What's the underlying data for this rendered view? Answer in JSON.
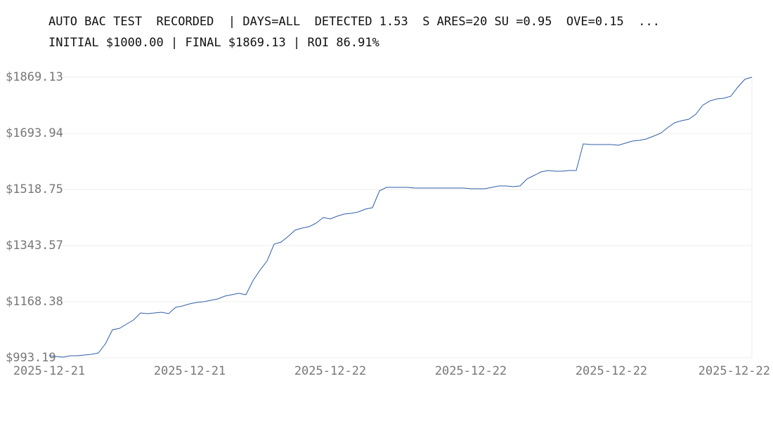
{
  "chart_data": {
    "type": "line",
    "title": "AUTO BAC TEST  RECORDED  | DAYS=ALL  DETECTED 1.53  S ARES=20 SU =0.95  OVE=0.15  ...",
    "subtitle": "INITIAL $1000.00 | FINAL $1869.13 | ROI 86.91%",
    "categories": [
      "2025-12-21",
      null,
      null,
      null,
      null,
      null,
      null,
      null,
      null,
      null,
      null,
      null,
      null,
      null,
      null,
      null,
      null,
      null,
      null,
      null,
      "2025-12-21",
      null,
      null,
      null,
      null,
      null,
      null,
      null,
      null,
      null,
      null,
      null,
      null,
      null,
      null,
      null,
      null,
      null,
      null,
      null,
      "2025-12-22",
      null,
      null,
      null,
      null,
      null,
      null,
      null,
      null,
      null,
      null,
      null,
      null,
      null,
      null,
      null,
      null,
      null,
      null,
      null,
      "2025-12-22",
      null,
      null,
      null,
      null,
      null,
      null,
      null,
      null,
      null,
      null,
      null,
      null,
      null,
      null,
      null,
      null,
      null,
      null,
      null,
      "2025-12-22",
      null,
      null,
      null,
      null,
      null,
      null,
      null,
      null,
      null,
      null,
      null,
      null,
      null,
      null,
      null,
      null,
      null,
      null,
      null,
      "2025-12-22"
    ],
    "series": [
      {
        "color": "#2f5fa8",
        "values": [
          1000.0,
          997.57,
          995.38,
          999.76,
          999.76,
          1001.95,
          1004.14,
          1008.52,
          1036.99,
          1080.78,
          1085.16,
          1098.3,
          1111.44,
          1133.34,
          1131.15,
          1133.34,
          1135.53,
          1131.15,
          1150.86,
          1155.24,
          1161.81,
          1166.19,
          1168.38,
          1172.76,
          1177.14,
          1185.9,
          1190.28,
          1194.66,
          1190.28,
          1234.07,
          1266.92,
          1295.39,
          1347.95,
          1354.52,
          1372.03,
          1391.74,
          1398.31,
          1402.69,
          1413.64,
          1431.16,
          1426.78,
          1435.54,
          1442.11,
          1444.3,
          1448.68,
          1457.44,
          1461.82,
          1514.37,
          1525.32,
          1525.32,
          1525.32,
          1525.32,
          1523.13,
          1523.13,
          1523.13,
          1523.13,
          1523.13,
          1523.13,
          1523.13,
          1523.13,
          1520.94,
          1520.94,
          1520.94,
          1525.32,
          1529.7,
          1529.7,
          1527.51,
          1529.7,
          1551.6,
          1562.55,
          1573.5,
          1577.88,
          1575.69,
          1575.69,
          1577.88,
          1577.88,
          1661.09,
          1658.9,
          1658.9,
          1658.9,
          1658.9,
          1656.71,
          1663.28,
          1669.85,
          1672.04,
          1676.42,
          1685.18,
          1693.94,
          1711.46,
          1726.79,
          1733.36,
          1737.74,
          1753.07,
          1781.54,
          1794.68,
          1801.24,
          1803.43,
          1809.8,
          1838.47,
          1862.56,
          1869.13
        ]
      }
    ],
    "ylim": [
      993.19,
      1869.13
    ],
    "yticks": [
      {
        "value": 993.19,
        "label": "$993.19"
      },
      {
        "value": 1168.38,
        "label": "$1168.38"
      },
      {
        "value": 1343.57,
        "label": "$1343.57"
      },
      {
        "value": 1518.75,
        "label": "$1518.75"
      },
      {
        "value": 1693.94,
        "label": "$1693.94"
      },
      {
        "value": 1869.13,
        "label": "$1869.13"
      }
    ],
    "grid": true
  }
}
